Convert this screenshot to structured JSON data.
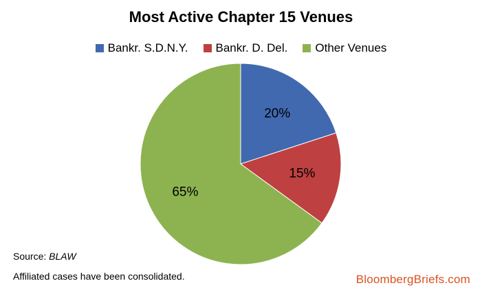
{
  "chart_data": {
    "type": "pie",
    "title": "Most Active Chapter 15 Venues",
    "categories": [
      "Bankr. S.D.N.Y.",
      "Bankr. D. Del.",
      "Other Venues"
    ],
    "values": [
      20,
      15,
      65
    ],
    "data_labels": [
      "20%",
      "15%",
      "65%"
    ],
    "colors": [
      "#4169b0",
      "#be4040",
      "#8db350"
    ],
    "start_angle_deg": 0,
    "direction": "clockwise",
    "legend_position": "top"
  },
  "source": {
    "label": "Source: ",
    "value": "BLAW"
  },
  "footnote": "Affiliated cases have been consolidated.",
  "brand": "BloombergBriefs.com"
}
